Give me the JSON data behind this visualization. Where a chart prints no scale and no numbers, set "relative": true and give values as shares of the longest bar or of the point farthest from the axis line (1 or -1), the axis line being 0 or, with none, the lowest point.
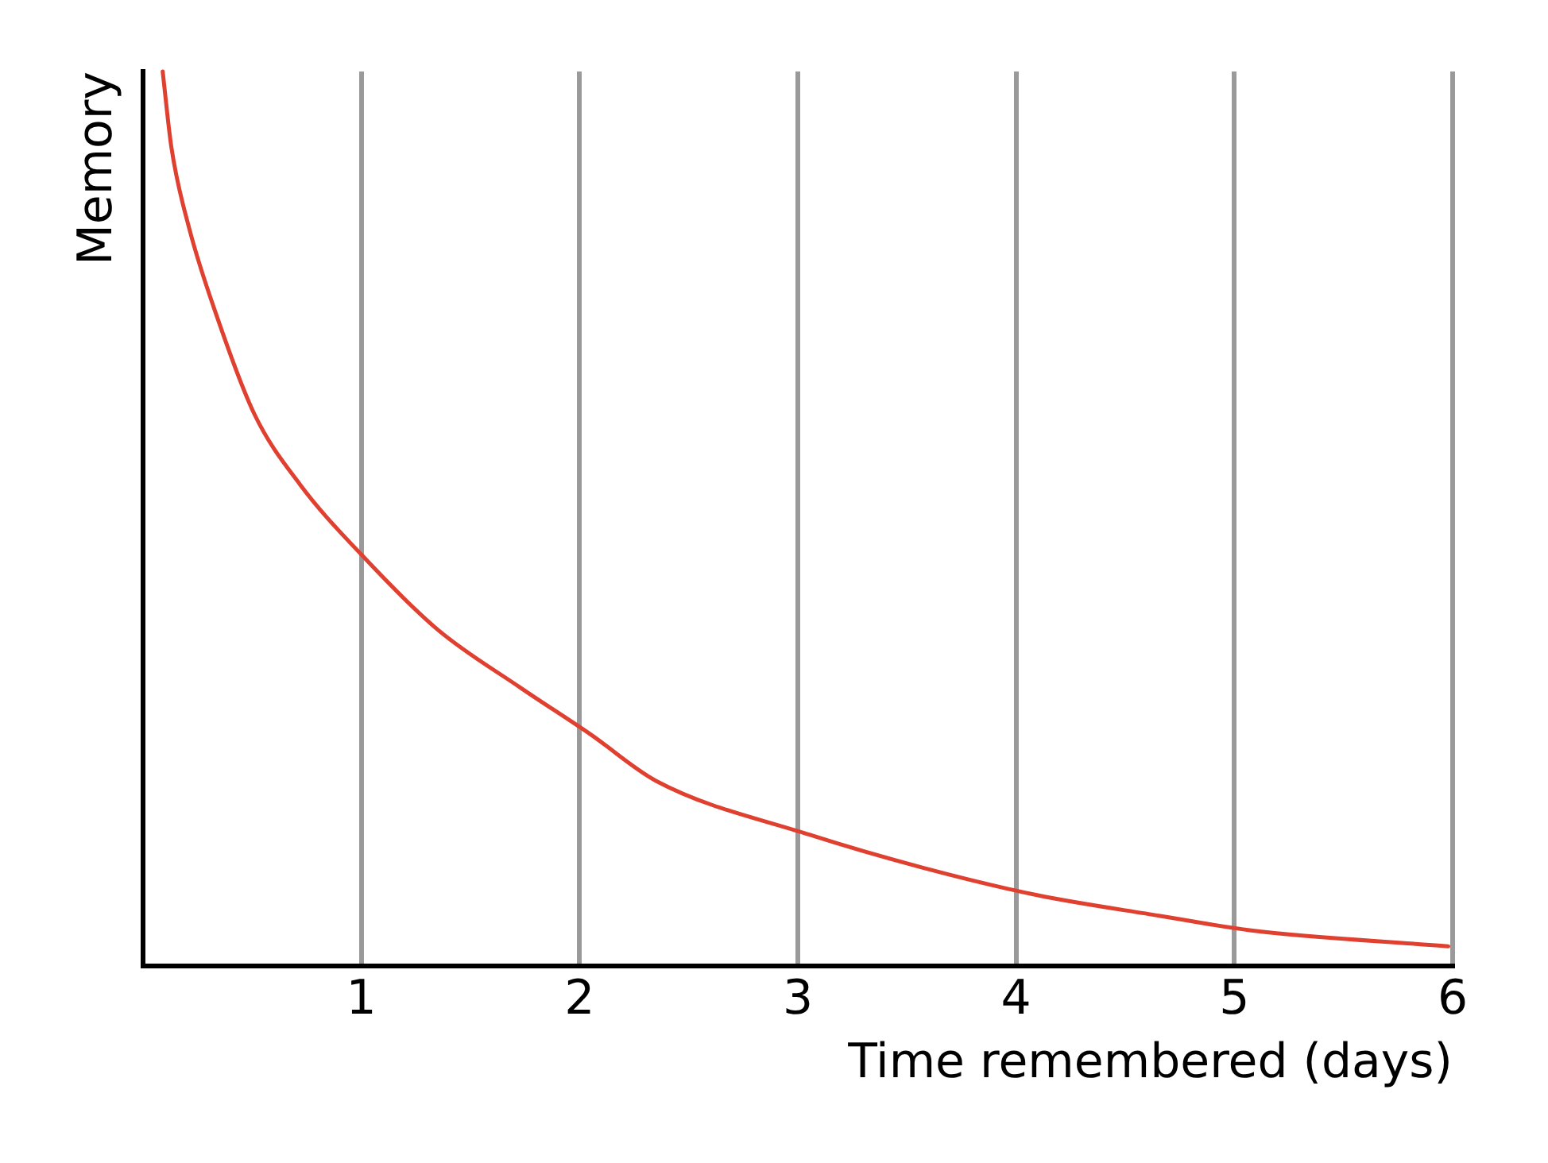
{
  "chart_data": {
    "type": "line",
    "xlabel": "Time remembered (days)",
    "ylabel": "Memory",
    "relative": true,
    "xlim": [
      0,
      6
    ],
    "xticks": [
      1,
      2,
      3,
      4,
      5,
      6
    ],
    "grid": "x",
    "marker": "none",
    "line_style": "solid",
    "series": [
      {
        "color": "#e0402f",
        "x": [
          0.09,
          0.13,
          0.21,
          0.34,
          0.51,
          0.72,
          1.0,
          1.35,
          1.73,
          2.05,
          2.35,
          3.05,
          3.57,
          4.1,
          4.66,
          5.07,
          5.98
        ],
        "values": [
          1,
          0.915,
          0.826,
          0.725,
          0.617,
          0.538,
          0.46,
          0.376,
          0.311,
          0.259,
          0.207,
          0.147,
          0.11,
          0.079,
          0.056,
          0.04,
          0.022
        ]
      }
    ]
  }
}
